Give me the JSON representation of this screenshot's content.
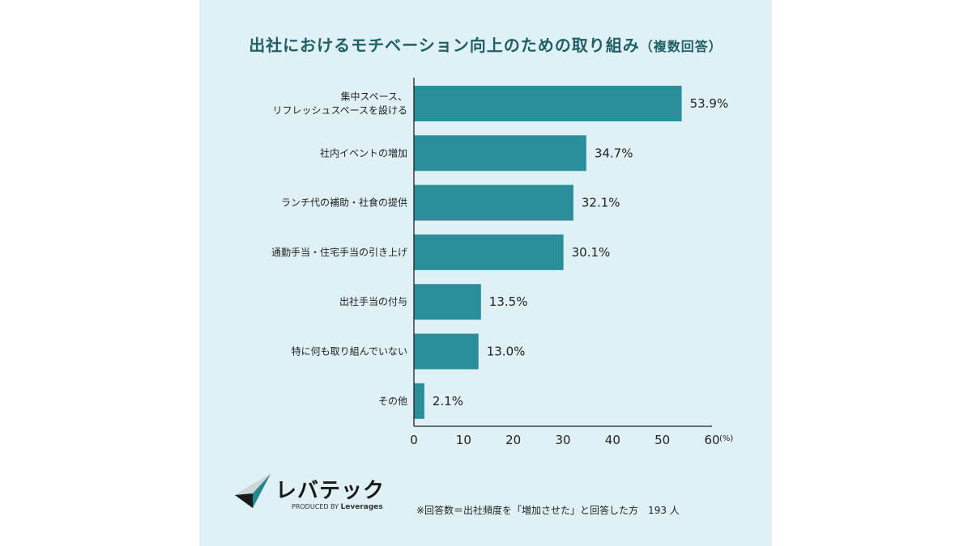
{
  "title": {
    "main": "出社におけるモチベーション向上のための取り組み",
    "suffix": "（複数回答）"
  },
  "chart_data": {
    "type": "bar",
    "orientation": "horizontal",
    "categories": [
      [
        "集中スペース、",
        "リフレッシュスペースを設ける"
      ],
      [
        "社内イベントの増加"
      ],
      [
        "ランチ代の補助・社食の提供"
      ],
      [
        "通勤手当・住宅手当の引き上げ"
      ],
      [
        "出社手当の付与"
      ],
      [
        "特に何も取り組んでいない"
      ],
      [
        "その他"
      ]
    ],
    "values": [
      53.9,
      34.7,
      32.1,
      30.1,
      13.5,
      13.0,
      2.1
    ],
    "value_labels": [
      "53.9%",
      "34.7%",
      "32.1%",
      "30.1%",
      "13.5%",
      "13.0%",
      "2.1%"
    ],
    "xlim": [
      0,
      60
    ],
    "xticks": [
      "0",
      "10",
      "20",
      "30",
      "40",
      "50",
      "60"
    ],
    "unit": "(%)",
    "grid": false,
    "bar_color": "#2a8f9b"
  },
  "logo": {
    "name": "レバテック",
    "produced_by": "PRODUCED BY",
    "brand": "Leverages"
  },
  "footnote": "※回答数＝出社頻度を「増加させた」と回答した方　193 人"
}
